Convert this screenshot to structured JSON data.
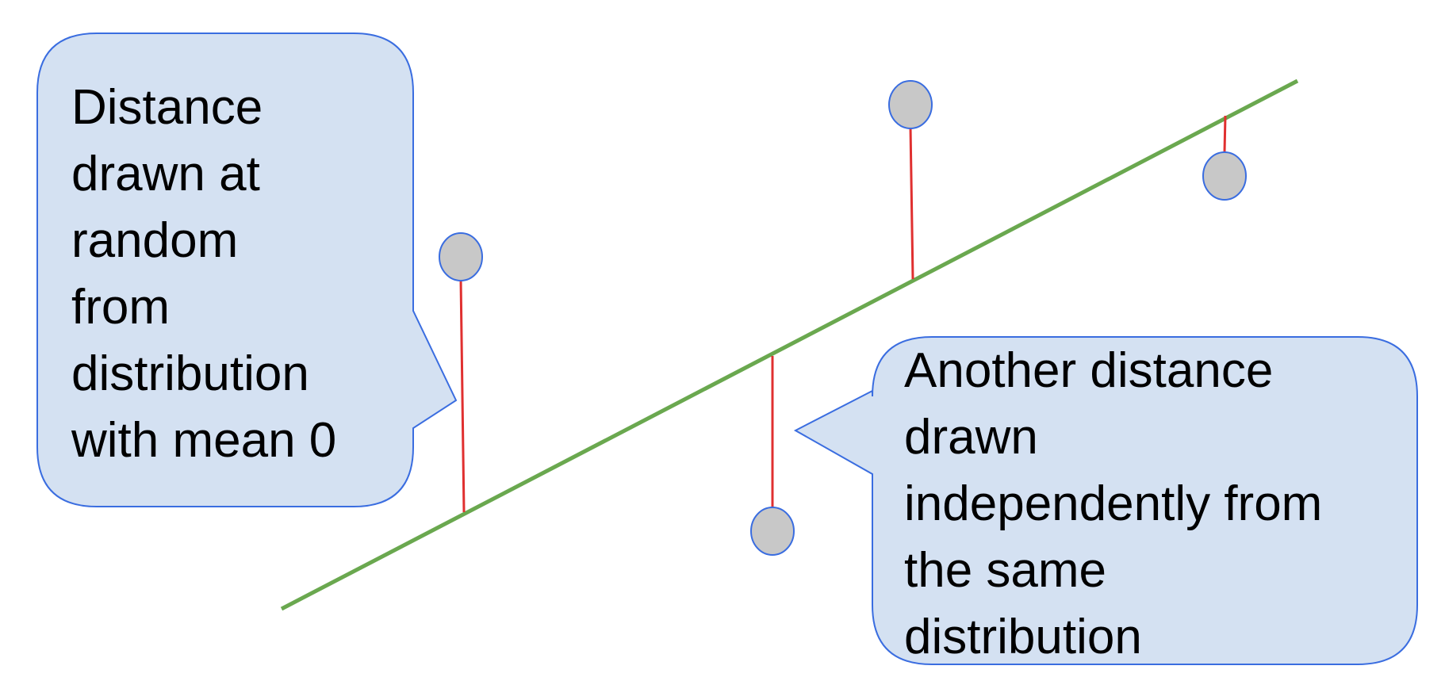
{
  "colors": {
    "regression_line": "#6aa84f",
    "residual": "#e03030",
    "point_fill": "#c8c8c8",
    "point_stroke": "#3a6de0",
    "callout_fill": "#d4e1f2",
    "callout_stroke": "#3a6de0"
  },
  "callouts": {
    "left": {
      "lines": [
        "Distance",
        "drawn at",
        "random",
        "from",
        "distribution",
        "with mean 0"
      ]
    },
    "right": {
      "lines": [
        "Another distance",
        "drawn",
        "independently from",
        "the same",
        "distribution"
      ]
    }
  }
}
